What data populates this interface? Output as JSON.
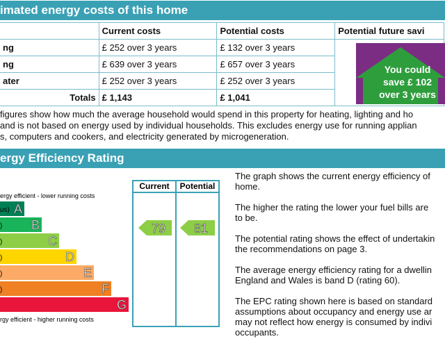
{
  "costs": {
    "title": "imated energy costs of this home",
    "header": [
      "Current costs",
      "Potential costs",
      "Potential future savi"
    ],
    "rows": [
      [
        "ng",
        "£ 252 over 3 years",
        "£ 132 over 3 years"
      ],
      [
        "ng",
        "£ 639 over 3 years",
        "£ 657 over 3 years"
      ],
      [
        "ater",
        "£ 252 over 3 years",
        "£ 252 over 3 years"
      ],
      [
        "Totals",
        "£ 1,143",
        "£ 1,041"
      ]
    ],
    "savings": [
      "You could",
      "save £ 102",
      "over 3 years"
    ],
    "note": [
      "figures show how much the average household would spend in this property for heating, lighting and ho",
      "and is not based on energy used by individual households. This excludes energy use for running applian",
      "s, computers and cookers, and electricity generated by microgeneration."
    ]
  },
  "rating": {
    "title": "ergy Efficiency Rating",
    "columns": [
      "Current",
      "Potential"
    ],
    "top_label": "ergy efficient - lower running costs",
    "bottom_label": "rgy efficient - higher running costs",
    "bands": [
      {
        "range": "us)",
        "letter": "A"
      },
      {
        "range": ")",
        "letter": "B"
      },
      {
        "range": ")",
        "letter": "C"
      },
      {
        "range": ")",
        "letter": "D"
      },
      {
        "range": ")",
        "letter": "E"
      },
      {
        "range": ")",
        "letter": "F"
      },
      {
        "letter": "G"
      }
    ],
    "current": 79,
    "potential": 81,
    "paragraphs": [
      [
        "The graph shows the current energy efficiency of",
        "home."
      ],
      [
        "The higher the rating the lower your fuel bills are",
        "to be."
      ],
      [
        "The potential rating shows the effect of undertakin",
        "the recommendations on page 3."
      ],
      [
        "The average energy efficiency rating for a dwellin",
        "England and Wales is band D (rating 60)."
      ],
      [
        "The EPC rating shown here is based on standard",
        "assumptions about occupancy and energy use ar",
        "may not reflect how energy is consumed by indivi",
        "occupants."
      ]
    ]
  }
}
